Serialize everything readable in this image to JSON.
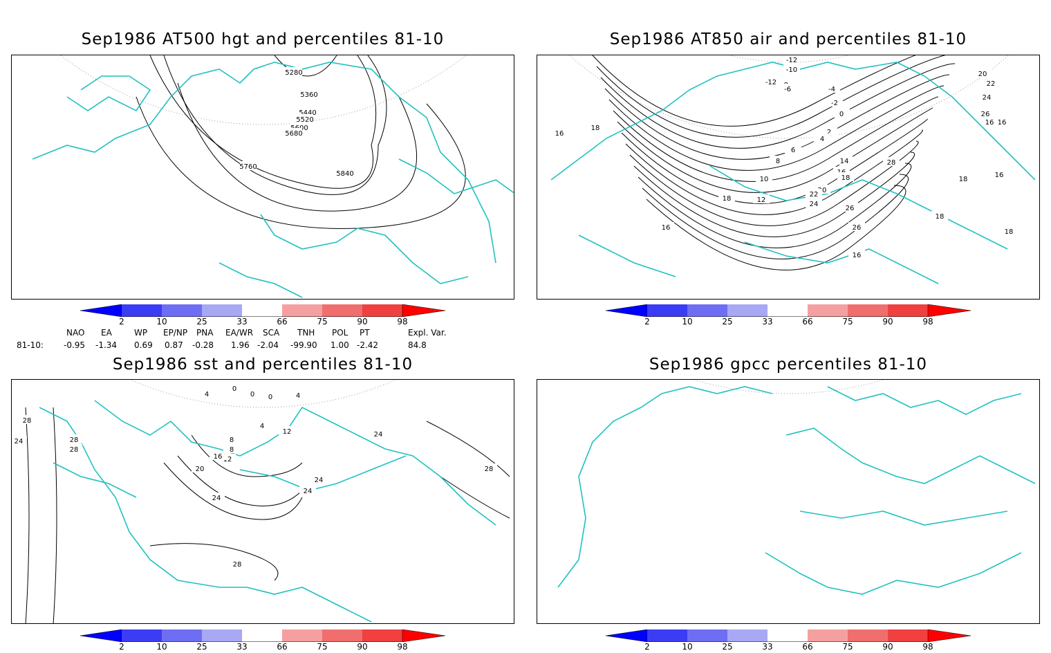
{
  "colors": {
    "blue_dark": "#0000ff",
    "blue_mid": "#3c3cf5",
    "blue_light": "#6e6ef5",
    "blue_pale": "#a8a8f5",
    "red_pale": "#f5a0a0",
    "red_light": "#f06e6e",
    "red_mid": "#f04040",
    "red_dark": "#ff0000",
    "coast": "#20c0c0",
    "grid": "#999999"
  },
  "panels": [
    {
      "id": "hgt",
      "title": "Sep1986 AT500 hgt and percentiles 81-10",
      "contour_labels": [
        "5280",
        "5360",
        "5440",
        "5520",
        "5600",
        "5680",
        "5760",
        "5840"
      ]
    },
    {
      "id": "air",
      "title": "Sep1986 AT850 air and percentiles 81-10",
      "contour_labels": [
        "-12",
        "-10",
        "-12",
        "-8",
        "-6",
        "-4",
        "-2",
        "0",
        "2",
        "4",
        "6",
        "8",
        "10",
        "12",
        "14",
        "16",
        "18",
        "20",
        "22",
        "24",
        "26",
        "28",
        "18",
        "18",
        "16",
        "16",
        "16",
        "18",
        "18",
        "16",
        "16",
        "20",
        "22",
        "24",
        "26",
        "26",
        "16",
        "18"
      ]
    },
    {
      "id": "sst",
      "title": "Sep1986 sst and percentiles 81-10",
      "contour_labels": [
        "0",
        "0",
        "0",
        "4",
        "4",
        "4",
        "8",
        "8",
        "12",
        "12",
        "16",
        "20",
        "24",
        "24",
        "24",
        "28",
        "28",
        "28",
        "28",
        "24",
        "28",
        "24"
      ]
    },
    {
      "id": "gpcc",
      "title": "Sep1986 gpcc percentiles 81-10",
      "contour_labels": []
    }
  ],
  "colorbar": {
    "labels": [
      "2",
      "10",
      "25",
      "33",
      "66",
      "75",
      "90",
      "98"
    ]
  },
  "indices": {
    "headers": [
      "NAO",
      "EA",
      "WP",
      "EP/NP",
      "PNA",
      "EA/WR",
      "SCA",
      "TNH",
      "POL",
      "PT",
      "Expl. Var."
    ],
    "row_label": "81-10:",
    "values": [
      "-0.95",
      "-1.34",
      "0.69",
      "0.87",
      "-0.28",
      "1.96",
      "-2.04",
      "-99.90",
      "1.00",
      "-2.42",
      "84.8"
    ]
  }
}
